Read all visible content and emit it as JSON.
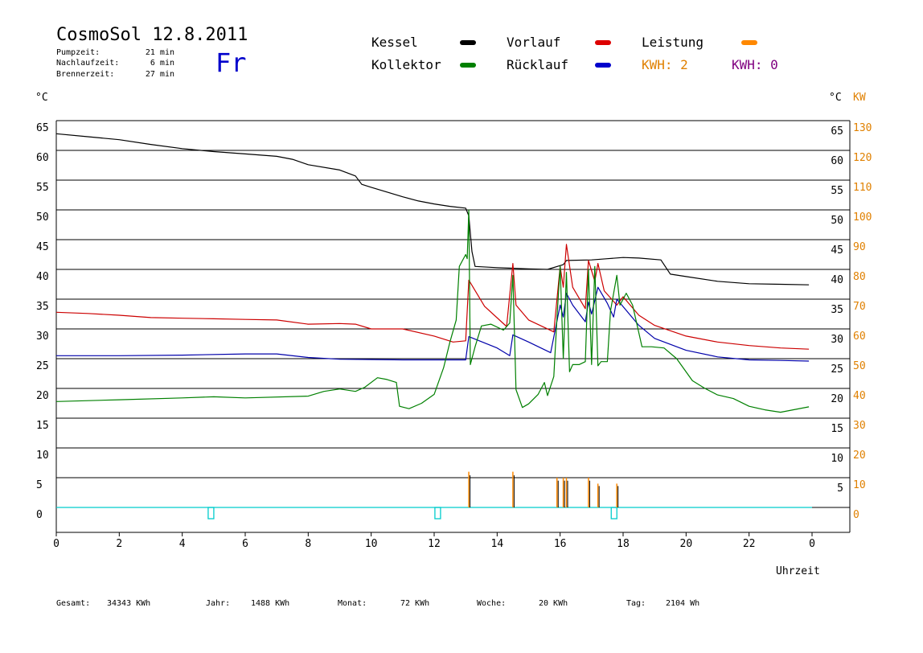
{
  "header": {
    "title": "CosmoSol 12.8.2011",
    "day": "Fr",
    "info": [
      {
        "label": "Pumpzeit:",
        "value": "21 min"
      },
      {
        "label": "Nachlaufzeit:",
        "value": "6 min"
      },
      {
        "label": "Brennerzeit:",
        "value": "27 min"
      }
    ]
  },
  "legend": [
    {
      "label": "Kessel",
      "color": "#000000"
    },
    {
      "label": "Vorlauf",
      "color": "#dd0000"
    },
    {
      "label": "Leistung",
      "color": "#ff8800"
    },
    {
      "label": "Kollektor",
      "color": "#008000"
    },
    {
      "label": "Rücklauf",
      "color": "#0000cc"
    }
  ],
  "kwh": [
    {
      "label": "KWH: 2",
      "color": "#e08000"
    },
    {
      "label": "KWH: 0",
      "color": "#800080"
    }
  ],
  "footer": [
    {
      "label": "Gesamt:",
      "value": "34343 KWh"
    },
    {
      "label": "Jahr:",
      "value": "1488 KWh"
    },
    {
      "label": "Monat:",
      "value": "72 KWh"
    },
    {
      "label": "Woche:",
      "value": "20 KWh"
    },
    {
      "label": "Tag:",
      "value": "2104 Wh"
    }
  ],
  "chart_data": {
    "type": "line",
    "xlabel": "Uhrzeit",
    "ylabel_left": "°C",
    "ylabel_right_temp": "°C",
    "ylabel_right_power": "KW",
    "xlim": [
      0,
      24
    ],
    "ylim": [
      -4,
      65
    ],
    "x_ticks": [
      "0",
      "2",
      "4",
      "6",
      "8",
      "10",
      "12",
      "14",
      "16",
      "18",
      "20",
      "22",
      "0"
    ],
    "y_ticks": [
      0,
      5,
      10,
      15,
      20,
      25,
      30,
      35,
      40,
      45,
      50,
      55,
      60,
      65
    ],
    "kw_ticks": [
      0,
      10,
      20,
      30,
      40,
      50,
      60,
      70,
      80,
      90,
      100,
      110,
      120,
      130
    ],
    "grid": "horizontal",
    "series": [
      {
        "name": "Kessel",
        "color": "#000000",
        "points": [
          [
            0,
            62.8
          ],
          [
            1,
            62.3
          ],
          [
            2,
            61.8
          ],
          [
            3,
            61.0
          ],
          [
            4,
            60.3
          ],
          [
            5,
            59.8
          ],
          [
            6,
            59.4
          ],
          [
            7,
            59.0
          ],
          [
            7.5,
            58.5
          ],
          [
            8,
            57.6
          ],
          [
            9,
            56.7
          ],
          [
            9.5,
            55.7
          ],
          [
            9.7,
            54.3
          ],
          [
            10,
            53.8
          ],
          [
            10.5,
            53.0
          ],
          [
            11,
            52.2
          ],
          [
            11.5,
            51.5
          ],
          [
            12,
            51.0
          ],
          [
            12.5,
            50.6
          ],
          [
            13,
            50.3
          ],
          [
            13.1,
            49.0
          ],
          [
            13.2,
            43.0
          ],
          [
            13.3,
            40.5
          ],
          [
            14,
            40.3
          ],
          [
            15,
            40.1
          ],
          [
            15.6,
            40.0
          ],
          [
            16.1,
            40.8
          ],
          [
            16.2,
            41.5
          ],
          [
            17,
            41.6
          ],
          [
            17.5,
            41.8
          ],
          [
            18,
            42.0
          ],
          [
            18.5,
            41.9
          ],
          [
            19.2,
            41.6
          ],
          [
            19.5,
            39.2
          ],
          [
            20,
            38.8
          ],
          [
            21,
            38.0
          ],
          [
            22,
            37.6
          ],
          [
            23,
            37.5
          ],
          [
            23.9,
            37.4
          ]
        ]
      },
      {
        "name": "Vorlauf",
        "color": "#cc0000",
        "points": [
          [
            0,
            32.8
          ],
          [
            1,
            32.6
          ],
          [
            2,
            32.3
          ],
          [
            3,
            31.9
          ],
          [
            4,
            31.8
          ],
          [
            5,
            31.7
          ],
          [
            6,
            31.6
          ],
          [
            7,
            31.5
          ],
          [
            8,
            30.8
          ],
          [
            9,
            30.9
          ],
          [
            9.5,
            30.8
          ],
          [
            10,
            30.0
          ],
          [
            11,
            30.0
          ],
          [
            12,
            28.8
          ],
          [
            12.6,
            27.8
          ],
          [
            13.0,
            28.0
          ],
          [
            13.1,
            38.2
          ],
          [
            13.6,
            33.8
          ],
          [
            14.3,
            30.4
          ],
          [
            14.5,
            41.0
          ],
          [
            14.6,
            34.0
          ],
          [
            15.0,
            31.5
          ],
          [
            15.8,
            29.5
          ],
          [
            16.0,
            40.5
          ],
          [
            16.1,
            37.0
          ],
          [
            16.2,
            44.2
          ],
          [
            16.4,
            37.0
          ],
          [
            16.8,
            33.4
          ],
          [
            16.9,
            41.5
          ],
          [
            17.1,
            38.0
          ],
          [
            17.2,
            41.0
          ],
          [
            17.4,
            36.4
          ],
          [
            17.8,
            34.0
          ],
          [
            18.0,
            35.4
          ],
          [
            18.5,
            32.3
          ],
          [
            19.0,
            30.6
          ],
          [
            20,
            28.8
          ],
          [
            21,
            27.8
          ],
          [
            22,
            27.2
          ],
          [
            23,
            26.8
          ],
          [
            23.9,
            26.6
          ]
        ]
      },
      {
        "name": "Rücklauf",
        "color": "#0000aa",
        "points": [
          [
            0,
            25.5
          ],
          [
            2,
            25.5
          ],
          [
            4,
            25.6
          ],
          [
            6,
            25.8
          ],
          [
            7,
            25.8
          ],
          [
            8,
            25.2
          ],
          [
            9,
            24.9
          ],
          [
            11,
            24.8
          ],
          [
            12,
            24.8
          ],
          [
            13.0,
            24.8
          ],
          [
            13.1,
            28.7
          ],
          [
            14.0,
            26.8
          ],
          [
            14.4,
            25.5
          ],
          [
            14.5,
            29.0
          ],
          [
            15.0,
            27.8
          ],
          [
            15.7,
            26.0
          ],
          [
            16.0,
            34.0
          ],
          [
            16.1,
            32.0
          ],
          [
            16.2,
            36.0
          ],
          [
            16.4,
            34.0
          ],
          [
            16.8,
            31.2
          ],
          [
            16.9,
            34.5
          ],
          [
            17.0,
            32.5
          ],
          [
            17.2,
            37.0
          ],
          [
            17.5,
            34.3
          ],
          [
            17.7,
            32.0
          ],
          [
            17.8,
            35.0
          ],
          [
            18.5,
            30.6
          ],
          [
            19.0,
            28.4
          ],
          [
            20,
            26.4
          ],
          [
            21,
            25.3
          ],
          [
            22,
            24.8
          ],
          [
            23,
            24.7
          ],
          [
            23.9,
            24.6
          ]
        ]
      },
      {
        "name": "Kollektor",
        "color": "#008000",
        "points": [
          [
            0,
            17.8
          ],
          [
            2,
            18.1
          ],
          [
            4,
            18.4
          ],
          [
            5,
            18.6
          ],
          [
            6,
            18.4
          ],
          [
            8,
            18.7
          ],
          [
            8.5,
            19.5
          ],
          [
            9,
            19.9
          ],
          [
            9.5,
            19.5
          ],
          [
            9.8,
            20.2
          ],
          [
            10.2,
            21.8
          ],
          [
            10.5,
            21.5
          ],
          [
            10.8,
            21.0
          ],
          [
            10.9,
            17.0
          ],
          [
            11.2,
            16.6
          ],
          [
            11.6,
            17.5
          ],
          [
            12.0,
            19.0
          ],
          [
            12.3,
            23.5
          ],
          [
            12.5,
            27.8
          ],
          [
            12.7,
            31.5
          ],
          [
            12.8,
            40.5
          ],
          [
            13.0,
            42.5
          ],
          [
            13.05,
            41.8
          ],
          [
            13.1,
            50.0
          ],
          [
            13.15,
            24.0
          ],
          [
            13.3,
            27.0
          ],
          [
            13.5,
            30.5
          ],
          [
            13.8,
            30.8
          ],
          [
            14.2,
            29.8
          ],
          [
            14.4,
            31.0
          ],
          [
            14.5,
            39.0
          ],
          [
            14.6,
            19.8
          ],
          [
            14.8,
            16.8
          ],
          [
            15.0,
            17.4
          ],
          [
            15.3,
            19.0
          ],
          [
            15.5,
            21.0
          ],
          [
            15.6,
            18.8
          ],
          [
            15.8,
            22.0
          ],
          [
            15.9,
            32.0
          ],
          [
            16.0,
            40.5
          ],
          [
            16.1,
            25.0
          ],
          [
            16.2,
            39.5
          ],
          [
            16.3,
            22.8
          ],
          [
            16.4,
            24.0
          ],
          [
            16.6,
            24.0
          ],
          [
            16.8,
            24.5
          ],
          [
            16.9,
            40.0
          ],
          [
            17.0,
            24.0
          ],
          [
            17.1,
            40.5
          ],
          [
            17.2,
            23.8
          ],
          [
            17.3,
            24.5
          ],
          [
            17.5,
            24.5
          ],
          [
            17.6,
            33.0
          ],
          [
            17.8,
            39.0
          ],
          [
            17.9,
            34.0
          ],
          [
            18.1,
            36.0
          ],
          [
            18.3,
            34.0
          ],
          [
            18.6,
            27.0
          ],
          [
            18.9,
            27.0
          ],
          [
            19.3,
            26.8
          ],
          [
            19.7,
            25.0
          ],
          [
            20.2,
            21.3
          ],
          [
            20.6,
            20.0
          ],
          [
            21,
            18.9
          ],
          [
            21.5,
            18.3
          ],
          [
            22,
            17.0
          ],
          [
            22.5,
            16.4
          ],
          [
            23,
            16.0
          ],
          [
            23.5,
            16.5
          ],
          [
            23.9,
            16.9
          ]
        ]
      }
    ],
    "power_series": {
      "name": "Leistung",
      "color": "#ff8800",
      "peaks": [
        [
          13.1,
          6
        ],
        [
          14.5,
          6
        ],
        [
          15.9,
          5
        ],
        [
          16.1,
          5
        ],
        [
          16.2,
          5
        ],
        [
          16.9,
          5
        ],
        [
          17.2,
          4
        ],
        [
          17.8,
          4
        ]
      ]
    },
    "pump_pulses": {
      "color": "#00cccc",
      "x": [
        4.9,
        12.1,
        17.7
      ]
    }
  }
}
